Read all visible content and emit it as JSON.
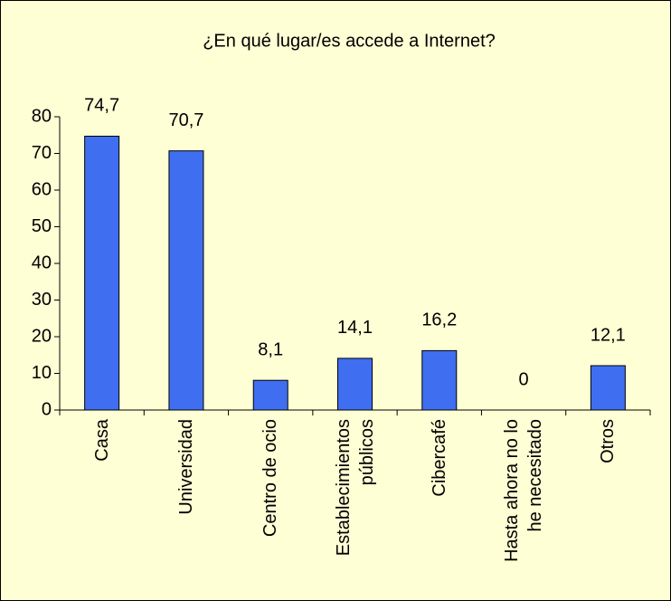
{
  "chart_data": {
    "type": "bar",
    "title": "¿En qué lugar/es accede a Internet?",
    "categories": [
      "Casa",
      "Universidad",
      "Centro de ocio",
      "Establecimientos públicos",
      "Cibercafé",
      "Hasta ahora no lo he necesitado",
      "Otros"
    ],
    "values": [
      74.7,
      70.7,
      8.1,
      14.1,
      16.2,
      0,
      12.1
    ],
    "value_labels": [
      "74,7",
      "70,7",
      "8,1",
      "14,1",
      "16,2",
      "0",
      "12,1"
    ],
    "color": "#3f6ff0",
    "ylim": [
      0,
      80
    ],
    "yticks": [
      0,
      10,
      20,
      30,
      40,
      50,
      60,
      70,
      80
    ],
    "grid": false
  }
}
